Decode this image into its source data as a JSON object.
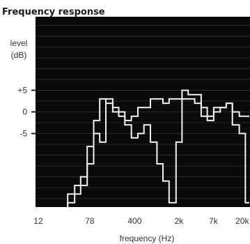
{
  "chart_data": {
    "type": "line",
    "title": "Frequency response",
    "ylabel_lines": [
      "level",
      "(dB)"
    ],
    "xlabel": "frequency (Hz)",
    "y_ticks": [
      {
        "value": 5,
        "label": "+5"
      },
      {
        "value": 0,
        "label": "0"
      },
      {
        "value": -5,
        "label": "-5"
      }
    ],
    "x_ticks": [
      {
        "value": 12,
        "label": "12"
      },
      {
        "value": 78,
        "label": "78"
      },
      {
        "value": 400,
        "label": "400"
      },
      {
        "value": 2000,
        "label": "2k"
      },
      {
        "value": 7000,
        "label": "7k"
      },
      {
        "value": 20000,
        "label": "20k"
      }
    ],
    "x_scale": "log",
    "xlim": [
      12,
      24000
    ],
    "ylim": [
      -22,
      22
    ],
    "grid": "horizontal",
    "series": [
      {
        "x": [
          35,
          45,
          56,
          71,
          90,
          112,
          140,
          180,
          224,
          280,
          355,
          450,
          560,
          710,
          900,
          1120,
          1400,
          1800,
          2240,
          2800,
          3550,
          4500,
          5600,
          7100,
          9000,
          11200,
          14000,
          18000,
          22400
        ],
        "y": [
          -19,
          -17,
          -15,
          -8,
          -2,
          3,
          2,
          0,
          0,
          -2,
          -1,
          1,
          1,
          3,
          3,
          2,
          3,
          3,
          5,
          4,
          4,
          1,
          -1,
          0,
          1,
          2,
          0,
          -1,
          -1
        ]
      },
      {
        "x": [
          35,
          45,
          56,
          71,
          90,
          112,
          140,
          180,
          224,
          280,
          355,
          450,
          560,
          710,
          900,
          1120,
          1400,
          1800,
          2240,
          2800,
          3550,
          4500,
          5600,
          7100,
          9000,
          11200,
          14000,
          18000,
          22400
        ],
        "y": [
          -21,
          -19,
          -17,
          -12,
          -5,
          -7,
          3,
          1,
          -1,
          -3,
          -6,
          -5,
          -3,
          -7,
          -12,
          -16,
          -21,
          -7,
          3,
          3,
          2,
          -1,
          -2,
          1,
          1,
          2,
          -3,
          -5,
          -21
        ]
      }
    ],
    "colors": {
      "plot_bg": "#0a0a0a",
      "line": "#f2f2f2",
      "grid": "#2b2b2b",
      "tick": "#ffffff"
    }
  }
}
